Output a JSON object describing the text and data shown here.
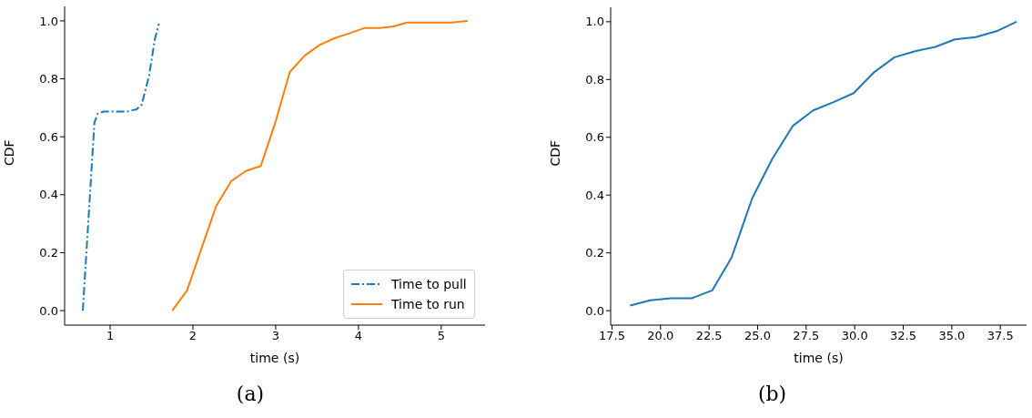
{
  "chart_data": [
    {
      "type": "line",
      "xlabel": "time (s)",
      "ylabel": "CDF",
      "annotations": [
        "(a)"
      ],
      "xlim": [
        0.45,
        5.53
      ],
      "xticks": [
        1,
        2,
        3,
        4,
        5
      ],
      "ylim": [
        -0.05,
        1.05
      ],
      "yticks": [
        {
          "value": 0,
          "label": "0.0"
        },
        {
          "value": 0.2,
          "label": "0.2"
        },
        {
          "value": 0.4,
          "label": "0.4"
        },
        {
          "value": 0.6,
          "label": "0.6"
        },
        {
          "value": 0.8,
          "label": "0.8"
        },
        {
          "value": 1,
          "label": "1.0"
        }
      ],
      "legend": "bottom right",
      "grid": false,
      "series": [
        {
          "name": "Time to pull",
          "color": "#1f77b4",
          "line_style": "dashdot",
          "x": [
            0.67,
            0.81,
            0.85,
            0.92,
            1.21,
            1.32,
            1.38,
            1.47,
            1.54,
            1.59
          ],
          "values": [
            0,
            0.648,
            0.68,
            0.687,
            0.687,
            0.695,
            0.71,
            0.81,
            0.936,
            0.99
          ]
        },
        {
          "name": "Time to run",
          "color": "#ff7f0e",
          "line_style": "solid",
          "x": [
            1.75,
            1.93,
            2.11,
            2.28,
            2.46,
            2.64,
            2.82,
            3.0,
            3.17,
            3.35,
            3.53,
            3.71,
            3.89,
            4.07,
            4.26,
            4.42,
            4.59,
            5.13,
            5.32
          ],
          "values": [
            0,
            0.07,
            0.22,
            0.36,
            0.446,
            0.482,
            0.499,
            0.653,
            0.823,
            0.88,
            0.917,
            0.94,
            0.957,
            0.975,
            0.975,
            0.981,
            0.994,
            0.994,
            1.0
          ]
        }
      ]
    },
    {
      "type": "line",
      "xlabel": "time (s)",
      "ylabel": "CDF",
      "annotations": [
        "(b)"
      ],
      "xlim": [
        17.43,
        38.85
      ],
      "xticks": [
        {
          "value": 17.5,
          "label": "17.5"
        },
        {
          "value": 20,
          "label": "20.0"
        },
        {
          "value": 22.5,
          "label": "22.5"
        },
        {
          "value": 25,
          "label": "25.0"
        },
        {
          "value": 27.5,
          "label": "27.5"
        },
        {
          "value": 30,
          "label": "30.0"
        },
        {
          "value": 32.5,
          "label": "32.5"
        },
        {
          "value": 35,
          "label": "35.0"
        },
        {
          "value": 37.5,
          "label": "37.5"
        }
      ],
      "ylim": [
        -0.05,
        1.05
      ],
      "yticks": [
        {
          "value": 0,
          "label": "0.0"
        },
        {
          "value": 0.2,
          "label": "0.2"
        },
        {
          "value": 0.4,
          "label": "0.4"
        },
        {
          "value": 0.6,
          "label": "0.6"
        },
        {
          "value": 0.8,
          "label": "0.8"
        },
        {
          "value": 1,
          "label": "1.0"
        }
      ],
      "grid": false,
      "series": [
        {
          "color": "#1f77b4",
          "line_style": "solid",
          "x": [
            18.43,
            19.47,
            20.56,
            21.61,
            22.66,
            23.66,
            24.72,
            25.76,
            26.82,
            27.86,
            28.91,
            29.95,
            31.01,
            32.05,
            33.11,
            34.15,
            35.16,
            36.24,
            37.3,
            38.34
          ],
          "values": [
            0.018,
            0.036,
            0.043,
            0.043,
            0.07,
            0.184,
            0.389,
            0.526,
            0.64,
            0.693,
            0.722,
            0.753,
            0.826,
            0.877,
            0.898,
            0.913,
            0.939,
            0.947,
            0.967,
            1.0
          ]
        }
      ]
    }
  ]
}
